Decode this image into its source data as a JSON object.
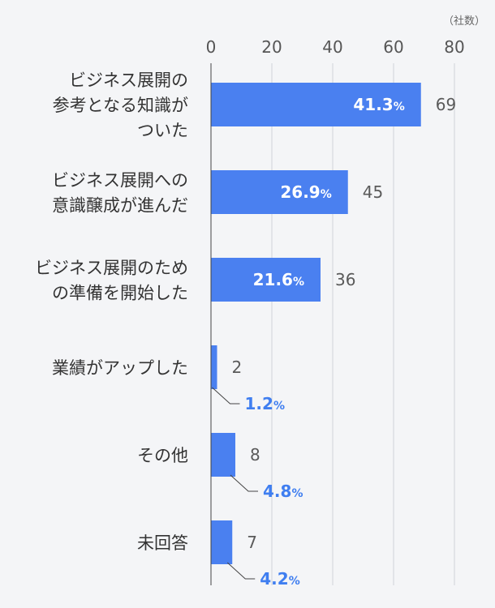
{
  "chart_data": {
    "type": "bar",
    "orientation": "horizontal",
    "unit_label": "（社数）",
    "categories": [
      "ビジネス展開の\n参考となる知識が\nついた",
      "ビジネス展開への\n意識醸成が進んだ",
      "ビジネス展開のため\nの準備を開始した",
      "業績がアップした",
      "その他",
      "未回答"
    ],
    "values": [
      69,
      45,
      36,
      2,
      8,
      7
    ],
    "percent_labels": [
      "41.3%",
      "26.9%",
      "21.6%",
      "1.2%",
      "4.8%",
      "4.2%"
    ],
    "xlim": [
      0,
      80
    ],
    "xticks": [
      0,
      20,
      40,
      60,
      80
    ],
    "grid": true,
    "colors": {
      "bar": "#4a80f0",
      "grid": "#cfd3d8",
      "axis": "#444444",
      "text": "#333333",
      "value": "#5a5a5a",
      "percent_outside": "#3f7ef0",
      "percent_inside": "#ffffff",
      "background": "#f4f5f7"
    }
  }
}
